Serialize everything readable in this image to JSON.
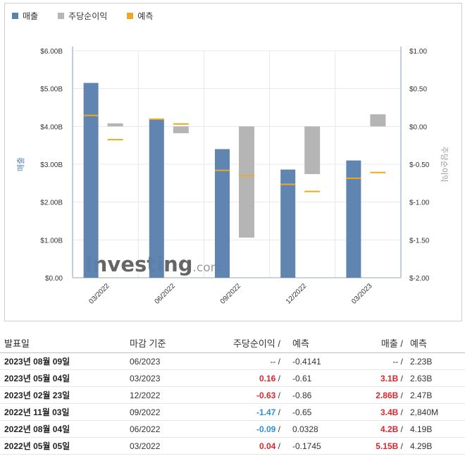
{
  "legend": {
    "revenue_label": "매출",
    "eps_label": "주당순이익",
    "forecast_label": "예측",
    "revenue_color": "#5b81ad",
    "eps_color": "#b5b5b5",
    "forecast_color": "#f0a91e"
  },
  "chart_data": {
    "type": "bar",
    "categories": [
      "03/2022",
      "06/2022",
      "09/2022",
      "12/2022",
      "03/2023"
    ],
    "series": [
      {
        "name": "매출",
        "axis": "left",
        "values": [
          5.15,
          4.2,
          3.4,
          2.86,
          3.1
        ],
        "forecast": [
          4.29,
          4.19,
          2.84,
          2.47,
          2.63
        ]
      },
      {
        "name": "주당순이익",
        "axis": "right",
        "values": [
          0.04,
          -0.09,
          -1.47,
          -0.63,
          0.16
        ],
        "forecast": [
          -0.1745,
          0.0328,
          -0.65,
          -0.86,
          -0.61
        ]
      }
    ],
    "y_left": {
      "label": "매출",
      "ticks": [
        "$0.00",
        "$1.00B",
        "$2.00B",
        "$3.00B",
        "$4.00B",
        "$5.00B",
        "$6.00B"
      ],
      "range": [
        0,
        6
      ]
    },
    "y_right": {
      "label": "주당순이익",
      "ticks": [
        "$-2.00",
        "$-1.50",
        "$-1.00",
        "$-0.50",
        "$0.00",
        "$0.50",
        "$1.00"
      ],
      "range": [
        -2,
        1
      ]
    },
    "watermark": "Investing.com",
    "grid": true
  },
  "table": {
    "headers": {
      "date": "발표일",
      "period": "마감 기준",
      "eps": "주당순이익",
      "eps_forecast": "예측",
      "revenue": "매출",
      "revenue_forecast": "예측",
      "slash": "/"
    },
    "rows": [
      {
        "date": "2023년 08월 09일",
        "period": "06/2023",
        "eps": "--",
        "eps_forecast": "-0.4141",
        "revenue": "--",
        "revenue_forecast": "2.23B",
        "eps_class": "",
        "rev_class": ""
      },
      {
        "date": "2023년 05월 04일",
        "period": "03/2023",
        "eps": "0.16",
        "eps_forecast": "-0.61",
        "revenue": "3.1B",
        "revenue_forecast": "2.63B",
        "eps_class": "pos",
        "rev_class": "pos"
      },
      {
        "date": "2023년 02월 23일",
        "period": "12/2022",
        "eps": "-0.63",
        "eps_forecast": "-0.86",
        "revenue": "2.86B",
        "revenue_forecast": "2.47B",
        "eps_class": "neg-red",
        "rev_class": "pos"
      },
      {
        "date": "2022년 11월 03일",
        "period": "09/2022",
        "eps": "-1.47",
        "eps_forecast": "-0.65",
        "revenue": "3.4B",
        "revenue_forecast": "2,840M",
        "eps_class": "neg-blue",
        "rev_class": "pos"
      },
      {
        "date": "2022년 08월 04일",
        "period": "06/2022",
        "eps": "-0.09",
        "eps_forecast": "0.0328",
        "revenue": "4.2B",
        "revenue_forecast": "4.19B",
        "eps_class": "neg-blue",
        "rev_class": "pos"
      },
      {
        "date": "2022년 05월 05일",
        "period": "03/2022",
        "eps": "0.04",
        "eps_forecast": "-0.1745",
        "revenue": "5.15B",
        "revenue_forecast": "4.29B",
        "eps_class": "pos",
        "rev_class": "pos"
      }
    ]
  }
}
